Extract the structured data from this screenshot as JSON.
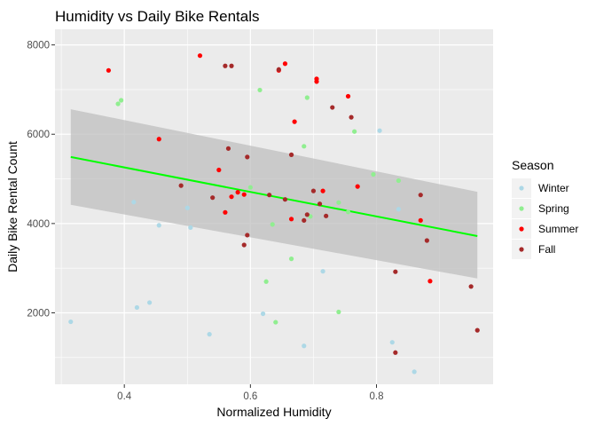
{
  "chart_data": {
    "type": "scatter",
    "title": "Humidity vs Daily Bike Rentals",
    "xlabel": "Normalized Humidity",
    "ylabel": "Daily Bike Rental Count",
    "xlim": [
      0.29,
      0.985
    ],
    "ylim": [
      400,
      8350
    ],
    "x_ticks": [
      0.4,
      0.6,
      0.8
    ],
    "x_tick_labels": [
      "0.4",
      "0.6",
      "0.8"
    ],
    "y_ticks": [
      2000,
      4000,
      6000,
      8000
    ],
    "y_tick_labels": [
      "2000",
      "4000",
      "6000",
      "8000"
    ],
    "grid": true,
    "legend": {
      "title": "Season",
      "position": "right"
    },
    "background_color": "#ebebeb",
    "grid_color": "#ffffff",
    "series": [
      {
        "name": "Winter",
        "color": "#add8e6",
        "points": [
          [
            0.315,
            1800
          ],
          [
            0.415,
            4480
          ],
          [
            0.42,
            2120
          ],
          [
            0.44,
            2230
          ],
          [
            0.455,
            3960
          ],
          [
            0.5,
            4350
          ],
          [
            0.505,
            3910
          ],
          [
            0.535,
            1520
          ],
          [
            0.62,
            1980
          ],
          [
            0.685,
            1260
          ],
          [
            0.715,
            2930
          ],
          [
            0.805,
            6080
          ],
          [
            0.825,
            1340
          ],
          [
            0.835,
            4320
          ],
          [
            0.86,
            680
          ]
        ]
      },
      {
        "name": "Spring",
        "color": "#90ee90",
        "points": [
          [
            0.39,
            6680
          ],
          [
            0.395,
            6760
          ],
          [
            0.6,
            4810
          ],
          [
            0.615,
            6990
          ],
          [
            0.625,
            2700
          ],
          [
            0.635,
            3980
          ],
          [
            0.64,
            1790
          ],
          [
            0.665,
            3210
          ],
          [
            0.685,
            5730
          ],
          [
            0.69,
            6820
          ],
          [
            0.695,
            4160
          ],
          [
            0.74,
            2020
          ],
          [
            0.74,
            4470
          ],
          [
            0.755,
            4260
          ],
          [
            0.765,
            6060
          ],
          [
            0.795,
            5100
          ],
          [
            0.835,
            4960
          ]
        ]
      },
      {
        "name": "Summer",
        "color": "#ff0000",
        "points": [
          [
            0.375,
            7430
          ],
          [
            0.455,
            5890
          ],
          [
            0.52,
            7760
          ],
          [
            0.55,
            5200
          ],
          [
            0.56,
            4250
          ],
          [
            0.57,
            4600
          ],
          [
            0.58,
            4700
          ],
          [
            0.59,
            4650
          ],
          [
            0.645,
            7430
          ],
          [
            0.655,
            7580
          ],
          [
            0.665,
            4100
          ],
          [
            0.67,
            6280
          ],
          [
            0.705,
            7240
          ],
          [
            0.705,
            7180
          ],
          [
            0.715,
            4730
          ],
          [
            0.755,
            6850
          ],
          [
            0.77,
            4830
          ],
          [
            0.87,
            4070
          ],
          [
            0.885,
            2710
          ]
        ]
      },
      {
        "name": "Fall",
        "color": "#a52a2a",
        "points": [
          [
            0.49,
            4850
          ],
          [
            0.54,
            4580
          ],
          [
            0.56,
            7530
          ],
          [
            0.565,
            5680
          ],
          [
            0.57,
            7530
          ],
          [
            0.59,
            3520
          ],
          [
            0.595,
            3740
          ],
          [
            0.595,
            5490
          ],
          [
            0.63,
            4640
          ],
          [
            0.645,
            7450
          ],
          [
            0.655,
            4540
          ],
          [
            0.665,
            5540
          ],
          [
            0.685,
            4070
          ],
          [
            0.69,
            4200
          ],
          [
            0.7,
            4730
          ],
          [
            0.71,
            4440
          ],
          [
            0.72,
            4170
          ],
          [
            0.73,
            6600
          ],
          [
            0.76,
            6380
          ],
          [
            0.83,
            2920
          ],
          [
            0.83,
            1110
          ],
          [
            0.87,
            4640
          ],
          [
            0.88,
            3620
          ],
          [
            0.95,
            2590
          ],
          [
            0.96,
            1610
          ]
        ]
      }
    ],
    "trend_line": {
      "method": "linear",
      "color": "#00ff00",
      "x_range": [
        0.315,
        0.96
      ],
      "y_values": [
        5490,
        3720
      ],
      "ci_lower": [
        4420,
        2770
      ],
      "ci_upper": [
        6560,
        4710
      ],
      "band_color": "#bfbfbf"
    }
  }
}
